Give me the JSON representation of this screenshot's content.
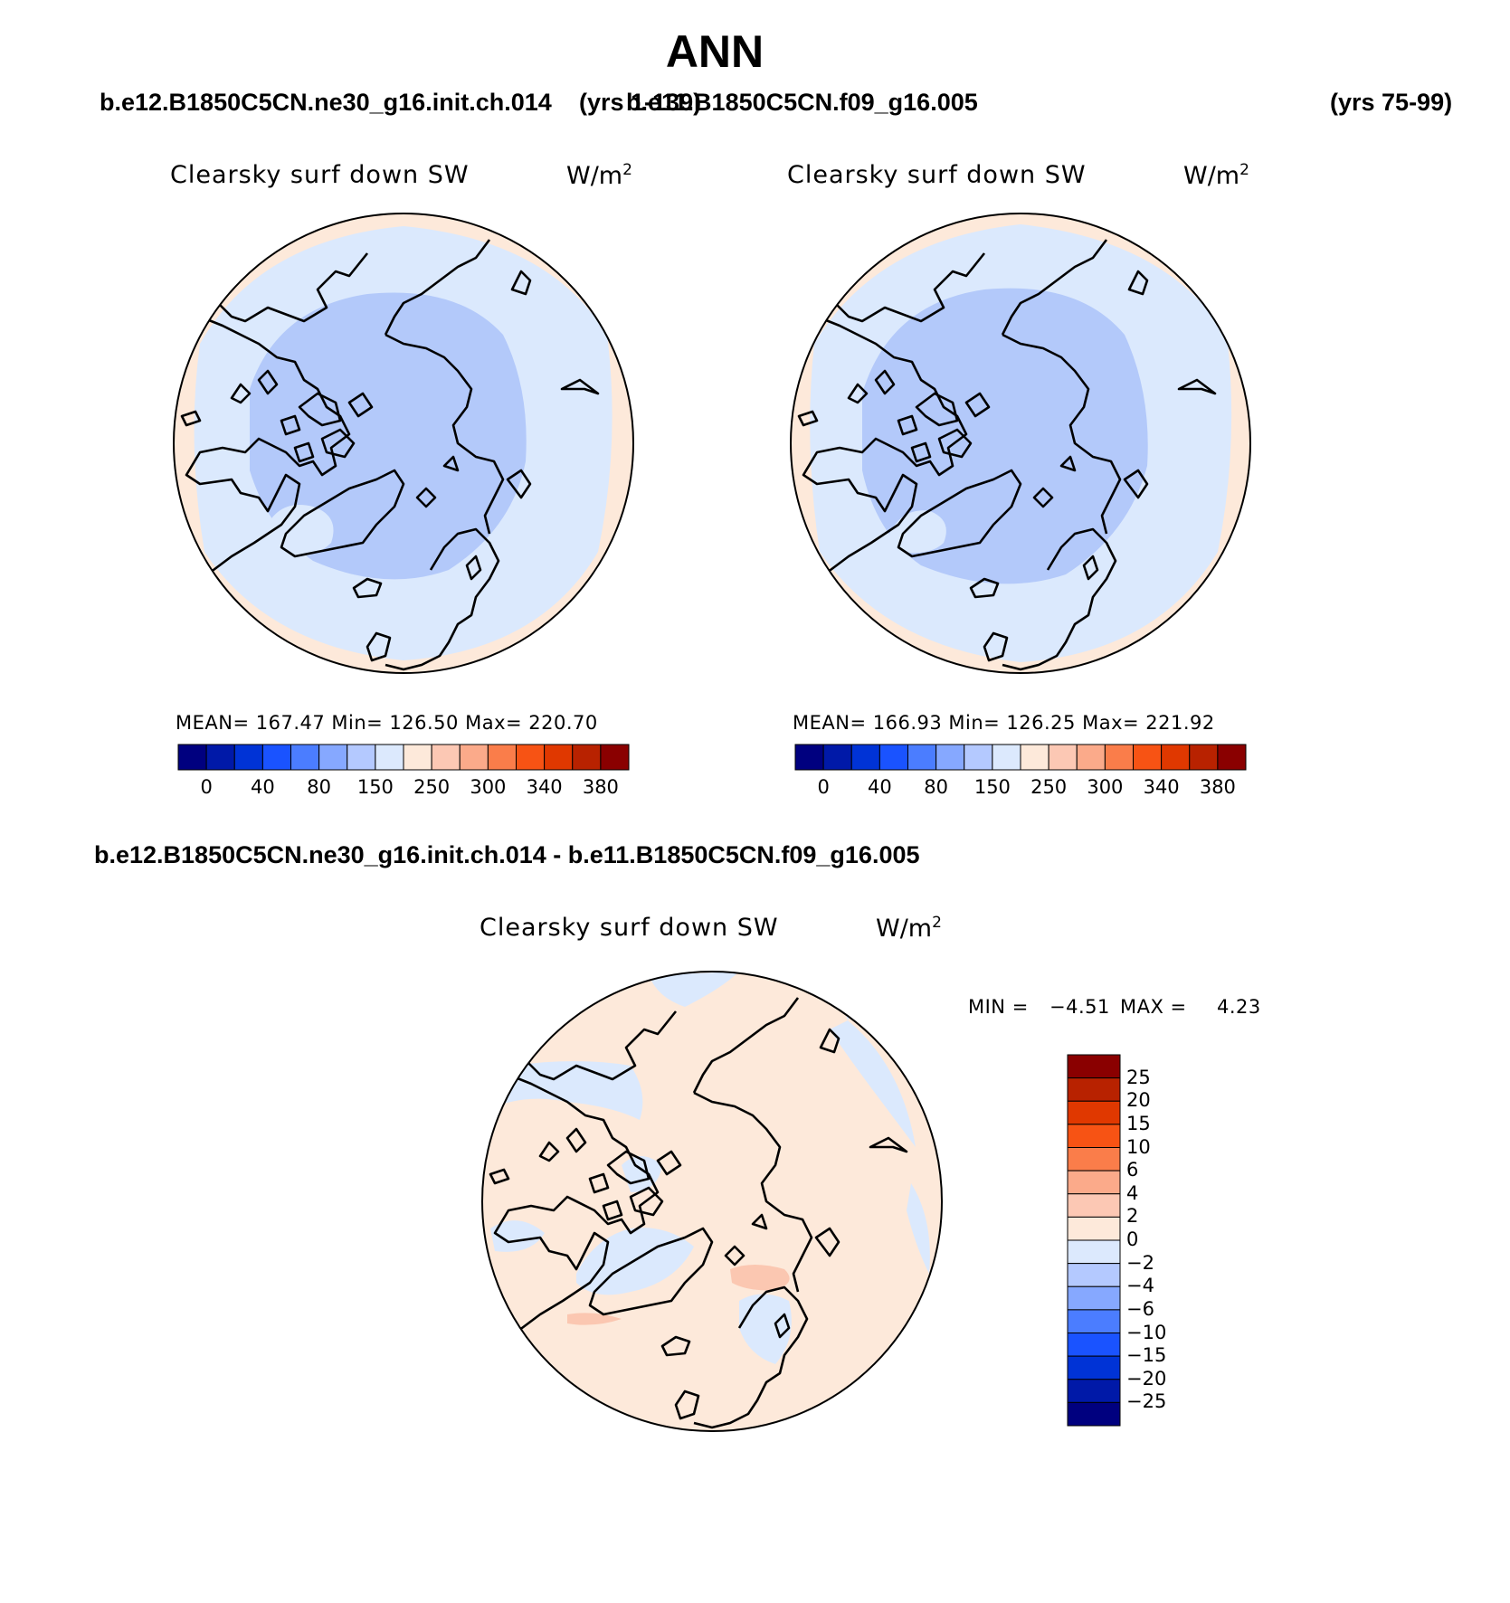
{
  "title": "ANN",
  "header": {
    "case1": "b.e12.B1850C5CN.ne30_g16.init.ch.014",
    "case1_years": "(yrs 1-139)",
    "case2": "b.e11.B1850C5CN.f09_g16.005",
    "case2_years": "(yrs 75-99)"
  },
  "panels": [
    {
      "variable": "Clearsky surf down SW",
      "units": "W/m",
      "units_exp": "2",
      "stats": "MEAN= 167.47   Min= 126.50   Max= 220.70"
    },
    {
      "variable": "Clearsky surf down SW",
      "units": "W/m",
      "units_exp": "2",
      "stats": "MEAN= 166.93   Min= 126.25   Max= 221.92"
    }
  ],
  "diff": {
    "title": "b.e12.B1850C5CN.ne30_g16.init.ch.014 - b.e11.B1850C5CN.f09_g16.005",
    "variable": "Clearsky surf down SW",
    "units": "W/m",
    "units_exp": "2",
    "min_label": "MIN =",
    "min_value": "−4.51",
    "max_label": "MAX =",
    "max_value": "4.23"
  },
  "colorbar": {
    "labels": [
      "0",
      "40",
      "80",
      "150",
      "250",
      "300",
      "340",
      "380"
    ],
    "colors": [
      "#00007f",
      "#0019a8",
      "#0033d6",
      "#1a53ff",
      "#4b7dff",
      "#86a8ff",
      "#b4c9ff",
      "#dce9fd",
      "#fde9da",
      "#fcc8b4",
      "#fbaa8a",
      "#fa7d4a",
      "#f75314",
      "#e03800",
      "#b82200",
      "#8a0000"
    ]
  },
  "diff_colorbar": {
    "labels": [
      "25",
      "20",
      "15",
      "10",
      "6",
      "4",
      "2",
      "0",
      "−2",
      "−4",
      "−6",
      "−10",
      "−15",
      "−20",
      "−25"
    ],
    "colors": [
      "#8a0000",
      "#b82200",
      "#e03800",
      "#f75314",
      "#fa7d4a",
      "#fbaa8a",
      "#fcc8b4",
      "#fde9da",
      "#dce9fd",
      "#b4c9ff",
      "#86a8ff",
      "#4b7dff",
      "#1a53ff",
      "#0033d6",
      "#0019a8",
      "#00007f"
    ]
  },
  "fills": {
    "outer_ring": "#fde9da",
    "field": "#dbe9fd",
    "central": "#b3c9fa",
    "diff_field": "#fde9da",
    "diff_blue": "#dbe9fd",
    "diff_warm": "#fbc7b1"
  }
}
